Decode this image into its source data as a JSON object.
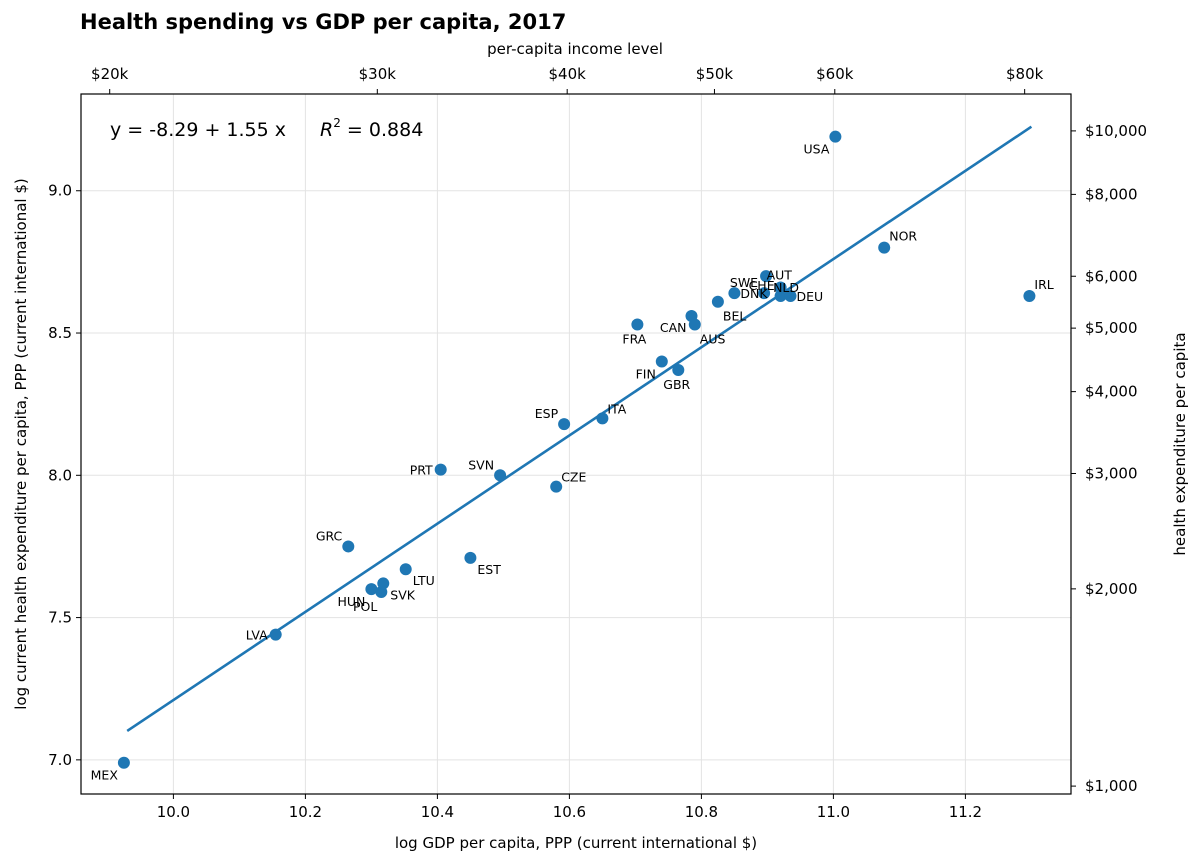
{
  "chart_data": {
    "type": "scatter",
    "title": "Health spending vs GDP per capita, 2017",
    "xlabel": "log GDP per capita, PPP (current international $)",
    "ylabel": "log current health expenditure per capita, PPP (current international $)",
    "top_xlabel": "per-capita income level",
    "right_ylabel": "health expenditure per capita",
    "xlim": [
      9.86,
      11.36
    ],
    "ylim": [
      6.88,
      9.34
    ],
    "x_ticks": [
      10.0,
      10.2,
      10.4,
      10.6,
      10.8,
      11.0,
      11.2
    ],
    "x_tick_labels": [
      "10.0",
      "10.2",
      "10.4",
      "10.6",
      "10.8",
      "11.0",
      "11.2"
    ],
    "y_ticks": [
      7.0,
      7.5,
      8.0,
      8.5,
      9.0
    ],
    "y_tick_labels": [
      "7.0",
      "7.5",
      "8.0",
      "8.5",
      "9.0"
    ],
    "top_ticks": [
      {
        "value": 20000,
        "label": "$20k"
      },
      {
        "value": 30000,
        "label": "$30k"
      },
      {
        "value": 40000,
        "label": "$40k"
      },
      {
        "value": 50000,
        "label": "$50k"
      },
      {
        "value": 60000,
        "label": "$60k"
      },
      {
        "value": 80000,
        "label": "$80k"
      }
    ],
    "right_ticks": [
      {
        "value": 1000,
        "label": "$1,000"
      },
      {
        "value": 2000,
        "label": "$2,000"
      },
      {
        "value": 3000,
        "label": "$3,000"
      },
      {
        "value": 4000,
        "label": "$4,000"
      },
      {
        "value": 5000,
        "label": "$5,000"
      },
      {
        "value": 6000,
        "label": "$6,000"
      },
      {
        "value": 8000,
        "label": "$8,000"
      },
      {
        "value": 10000,
        "label": "$10,000"
      }
    ],
    "fit": {
      "intercept": -8.29,
      "slope": 1.55,
      "x_range": [
        9.93,
        11.3
      ],
      "equation_label": "y = -8.29 + 1.55 x",
      "r2_prefix": "R",
      "r2_sup": "2",
      "r2_value": " = 0.884"
    },
    "grid": true,
    "legend": "none",
    "colors": {
      "points": "#1f77b4",
      "fit_line": "#1f77b4",
      "grid": "#e3e3e3"
    },
    "points": [
      {
        "label": "MEX",
        "x": 9.925,
        "y": 6.99,
        "pos": "below-left"
      },
      {
        "label": "LVA",
        "x": 10.155,
        "y": 7.44,
        "pos": "left"
      },
      {
        "label": "GRC",
        "x": 10.265,
        "y": 7.75,
        "pos": "above-left"
      },
      {
        "label": "HUN",
        "x": 10.3,
        "y": 7.6,
        "pos": "below-left"
      },
      {
        "label": "POL",
        "x": 10.315,
        "y": 7.59,
        "pos": "below-left2"
      },
      {
        "label": "SVK",
        "x": 10.318,
        "y": 7.62,
        "pos": "right-low"
      },
      {
        "label": "LTU",
        "x": 10.352,
        "y": 7.67,
        "pos": "right-low"
      },
      {
        "label": "PRT",
        "x": 10.405,
        "y": 8.02,
        "pos": "left"
      },
      {
        "label": "EST",
        "x": 10.45,
        "y": 7.71,
        "pos": "right-low"
      },
      {
        "label": "SVN",
        "x": 10.495,
        "y": 8.0,
        "pos": "above-left"
      },
      {
        "label": "CZE",
        "x": 10.58,
        "y": 7.96,
        "pos": "right-up"
      },
      {
        "label": "ESP",
        "x": 10.592,
        "y": 8.18,
        "pos": "above-left"
      },
      {
        "label": "ITA",
        "x": 10.65,
        "y": 8.2,
        "pos": "right-up"
      },
      {
        "label": "FRA",
        "x": 10.703,
        "y": 8.53,
        "pos": "below"
      },
      {
        "label": "FIN",
        "x": 10.74,
        "y": 8.4,
        "pos": "below-left"
      },
      {
        "label": "GBR",
        "x": 10.765,
        "y": 8.37,
        "pos": "below"
      },
      {
        "label": "CAN",
        "x": 10.785,
        "y": 8.56,
        "pos": "left-low"
      },
      {
        "label": "AUS",
        "x": 10.79,
        "y": 8.53,
        "pos": "below-right"
      },
      {
        "label": "BEL",
        "x": 10.825,
        "y": 8.61,
        "pos": "below-right"
      },
      {
        "label": "DNK",
        "x": 10.85,
        "y": 8.64,
        "pos": "right"
      },
      {
        "label": "SWE",
        "x": 10.895,
        "y": 8.64,
        "pos": "above-left"
      },
      {
        "label": "NLD",
        "x": 10.898,
        "y": 8.7,
        "pos": "right-low"
      },
      {
        "label": "AUT",
        "x": 10.92,
        "y": 8.66,
        "pos": "above"
      },
      {
        "label": "CHE",
        "x": 10.92,
        "y": 8.63,
        "pos": "above-left"
      },
      {
        "label": "DEU",
        "x": 10.935,
        "y": 8.63,
        "pos": "right"
      },
      {
        "label": "USA",
        "x": 11.003,
        "y": 9.19,
        "pos": "below-left"
      },
      {
        "label": "NOR",
        "x": 11.077,
        "y": 8.8,
        "pos": "above-right"
      },
      {
        "label": "IRL",
        "x": 11.297,
        "y": 8.63,
        "pos": "above-right"
      }
    ]
  }
}
